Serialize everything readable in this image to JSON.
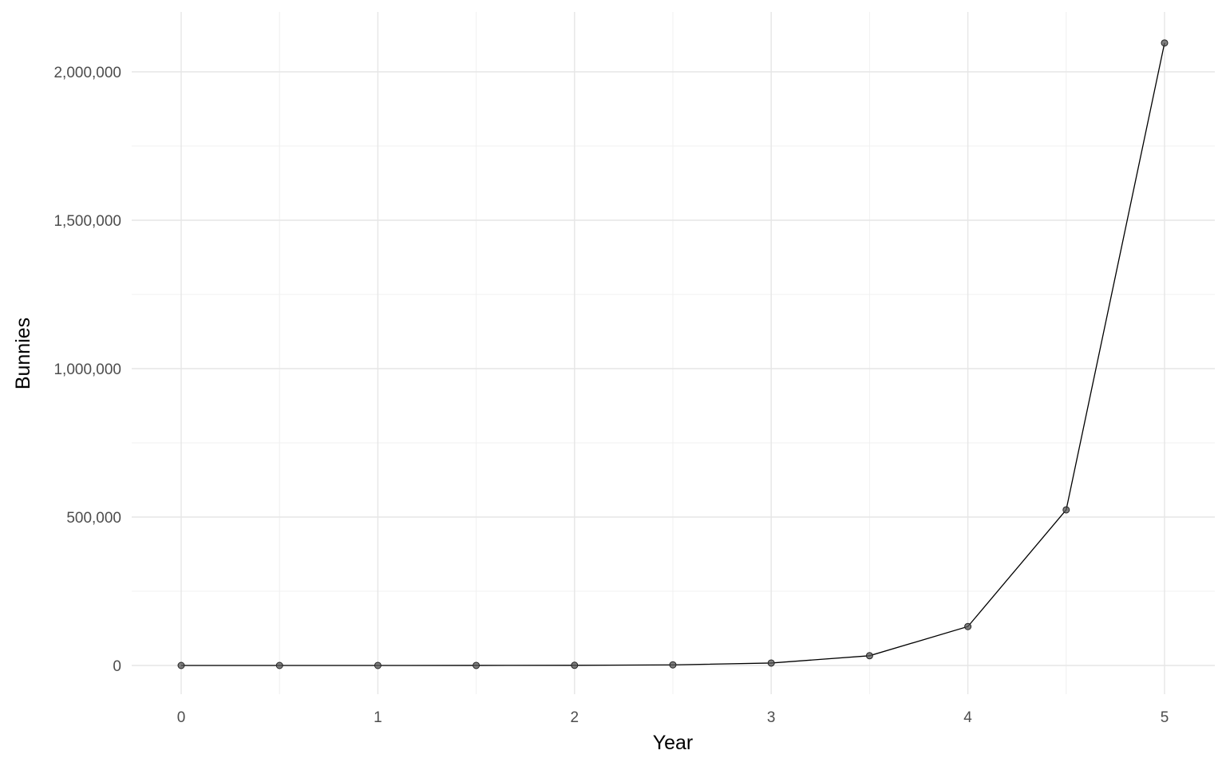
{
  "chart_data": {
    "type": "line",
    "title": "",
    "xlabel": "Year",
    "ylabel": "Bunnies",
    "x": [
      0,
      0.5,
      1,
      1.5,
      2,
      2.5,
      3,
      3.5,
      4,
      4.5,
      5
    ],
    "series": [
      {
        "values": [
          2,
          8,
          32,
          128,
          512,
          2048,
          8192,
          32768,
          131072,
          524288,
          2097152
        ]
      }
    ],
    "xlim": [
      -0.25,
      5.25
    ],
    "ylim": [
      -104857,
      2202010
    ],
    "xticks": [
      0,
      1,
      2,
      3,
      4,
      5
    ],
    "xtick_labels": [
      "0",
      "1",
      "2",
      "3",
      "4",
      "5"
    ],
    "yticks": [
      0,
      500000,
      1000000,
      1500000,
      2000000
    ],
    "ytick_labels": [
      "0",
      "500,000",
      "1,000,000",
      "1,500,000",
      "2,000,000"
    ],
    "grid": true,
    "line_color": "#000000",
    "point_color": "#555555"
  }
}
